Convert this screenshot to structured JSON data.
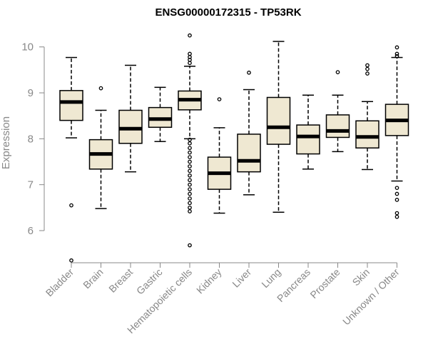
{
  "chart_data": {
    "type": "boxplot",
    "title": "ENSG00000172315 - TP53RK",
    "xlabel": "",
    "ylabel": "Expression",
    "ylim": [
      5.3,
      10.4
    ],
    "yticks": [
      6,
      7,
      8,
      9,
      10
    ],
    "grid": false,
    "colors": {
      "box_fill": "#efe8d2",
      "box_stroke": "#000000",
      "median": "#000000",
      "axis": "#888888"
    },
    "categories": [
      "Bladder",
      "Brain",
      "Breast",
      "Gastric",
      "Hematopoietic cells",
      "Kidney",
      "Liver",
      "Lung",
      "Pancreas",
      "Prostate",
      "Skin",
      "Unknown / Other"
    ],
    "boxes": [
      {
        "name": "Bladder",
        "whisker_low": 8.02,
        "q1": 8.4,
        "median": 8.8,
        "q3": 9.05,
        "whisker_high": 9.77,
        "outliers": [
          6.55,
          5.35
        ]
      },
      {
        "name": "Brain",
        "whisker_low": 6.48,
        "q1": 7.34,
        "median": 7.67,
        "q3": 7.98,
        "whisker_high": 8.62,
        "outliers": [
          9.1
        ]
      },
      {
        "name": "Breast",
        "whisker_low": 7.28,
        "q1": 7.9,
        "median": 8.22,
        "q3": 8.62,
        "whisker_high": 9.6,
        "outliers": []
      },
      {
        "name": "Gastric",
        "whisker_low": 7.94,
        "q1": 8.25,
        "median": 8.43,
        "q3": 8.68,
        "whisker_high": 9.12,
        "outliers": []
      },
      {
        "name": "Hematopoietic cells",
        "whisker_low": 8.0,
        "q1": 8.63,
        "median": 8.85,
        "q3": 9.04,
        "whisker_high": 9.58,
        "outliers": [
          10.25,
          9.85,
          9.78,
          9.72,
          9.65,
          7.98,
          7.9,
          7.8,
          7.7,
          7.6,
          7.5,
          7.4,
          7.3,
          7.2,
          7.1,
          7.0,
          6.9,
          6.8,
          6.7,
          6.6,
          6.5,
          6.42,
          5.68
        ]
      },
      {
        "name": "Kidney",
        "whisker_low": 6.38,
        "q1": 6.9,
        "median": 7.25,
        "q3": 7.6,
        "whisker_high": 8.24,
        "outliers": [
          8.86
        ]
      },
      {
        "name": "Liver",
        "whisker_low": 6.78,
        "q1": 7.28,
        "median": 7.52,
        "q3": 8.1,
        "whisker_high": 9.07,
        "outliers": [
          9.44
        ]
      },
      {
        "name": "Lung",
        "whisker_low": 6.4,
        "q1": 7.88,
        "median": 8.25,
        "q3": 8.9,
        "whisker_high": 10.12,
        "outliers": []
      },
      {
        "name": "Pancreas",
        "whisker_low": 7.34,
        "q1": 7.67,
        "median": 8.05,
        "q3": 8.3,
        "whisker_high": 8.95,
        "outliers": []
      },
      {
        "name": "Prostate",
        "whisker_low": 7.72,
        "q1": 8.03,
        "median": 8.17,
        "q3": 8.52,
        "whisker_high": 8.95,
        "outliers": [
          9.45
        ]
      },
      {
        "name": "Skin",
        "whisker_low": 7.33,
        "q1": 7.8,
        "median": 8.04,
        "q3": 8.39,
        "whisker_high": 8.81,
        "outliers": [
          9.6,
          9.52,
          9.42
        ]
      },
      {
        "name": "Unknown / Other",
        "whisker_low": 7.08,
        "q1": 8.07,
        "median": 8.4,
        "q3": 8.75,
        "whisker_high": 9.77,
        "outliers": [
          9.99,
          9.85,
          9.8,
          6.93,
          6.8,
          6.67,
          6.38,
          6.3
        ]
      }
    ]
  }
}
